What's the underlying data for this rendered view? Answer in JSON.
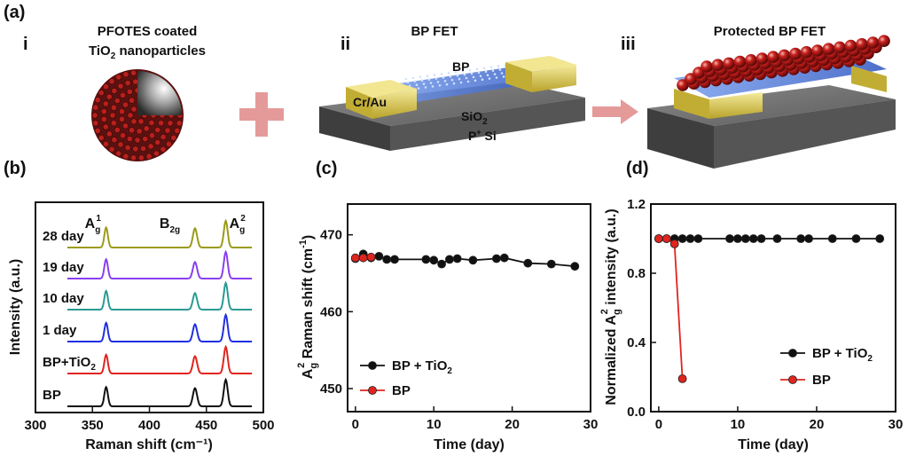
{
  "top": {
    "panel_label": "(a)",
    "i": {
      "roman": "i",
      "title_line1": "PFOTES coated",
      "title_line2_pre": "TiO",
      "title_line2_sub": "2",
      "title_line2_post": " nanoparticles"
    },
    "ii": {
      "roman": "ii",
      "title": "BP FET",
      "bp_label": "BP",
      "electrode_label": "Cr/Au",
      "sio2_pre": "SiO",
      "sio2_sub": "2",
      "psi_pre": "P",
      "psi_sup": "+",
      "psi_post": " Si"
    },
    "iii": {
      "roman": "iii",
      "title": "Protected BP FET"
    }
  },
  "colors": {
    "bp_plus_tio2": "#111111",
    "bp": "#e0241f",
    "raman_28": "#9b9b1a",
    "raman_19": "#8a3ff0",
    "raman_10": "#2a9a93",
    "raman_1": "#2030e0",
    "raman_bptio2": "#e0241f",
    "raman_bp": "#111111",
    "plus_sign": "#e59a9a",
    "arrow": "#e59a9a",
    "gold": "#d8c84a",
    "bp_blue": "#4a78d8"
  },
  "chart_data": [
    {
      "type": "line",
      "panel": "(b)",
      "xlabel": "Raman shift (cm⁻¹)",
      "ylabel": "Intensity (a.u.)",
      "xlim": [
        300,
        500
      ],
      "xticks": [
        "300",
        "350",
        "400",
        "450",
        "500"
      ],
      "peaks": [
        {
          "label_main": "A",
          "label_sub": "g",
          "label_sup": "1",
          "position": 362
        },
        {
          "label_main": "B",
          "label_sub": "2g",
          "label_sup": "",
          "position": 440
        },
        {
          "label_main": "A",
          "label_sub": "g",
          "label_sup": "2",
          "position": 467
        }
      ],
      "series": [
        {
          "name": "28 day",
          "peak_heights": [
            0.75,
            0.72,
            1.0
          ]
        },
        {
          "name": "19 day",
          "peak_heights": [
            0.72,
            0.62,
            1.0
          ]
        },
        {
          "name": "10 day",
          "peak_heights": [
            0.7,
            0.62,
            1.0
          ]
        },
        {
          "name": "1 day",
          "peak_heights": [
            0.7,
            0.65,
            1.0
          ]
        },
        {
          "name_pre": "BP+TiO",
          "name_sub": "2",
          "peak_heights": [
            0.7,
            0.65,
            1.0
          ]
        },
        {
          "name": "BP",
          "peak_heights": [
            0.72,
            0.68,
            1.0
          ]
        }
      ]
    },
    {
      "type": "line",
      "panel": "(c)",
      "xlabel": "Time (day)",
      "ylabel_pre": "A",
      "ylabel_sub": "g",
      "ylabel_sup": "2",
      "ylabel_post": " Raman shift (cm",
      "ylabel_sup2": "-1",
      "ylabel_end": ")",
      "xlim": [
        -1,
        30
      ],
      "ylim": [
        447,
        474
      ],
      "xticks": [
        "0",
        "10",
        "20",
        "30"
      ],
      "yticks": [
        "450",
        "460",
        "470"
      ],
      "series": [
        {
          "name_pre": "BP + TiO",
          "name_sub": "2",
          "x": [
            0,
            1,
            2,
            3,
            4,
            5,
            9,
            10,
            11,
            12,
            13,
            15,
            18,
            19,
            22,
            25,
            28
          ],
          "y": [
            466.9,
            467.5,
            467.0,
            467.2,
            466.8,
            466.8,
            466.8,
            466.7,
            466.2,
            466.8,
            466.9,
            466.7,
            466.9,
            467.0,
            466.3,
            466.2,
            465.9
          ]
        },
        {
          "name": "BP",
          "x": [
            0,
            1,
            2
          ],
          "y": [
            467.0,
            467.0,
            467.1
          ]
        }
      ]
    },
    {
      "type": "line",
      "panel": "(d)",
      "xlabel": "Time (day)",
      "ylabel_pre": "Normalized A",
      "ylabel_sub": "g",
      "ylabel_sup": "2",
      "ylabel_post": " intensity (a.u.)",
      "xlim": [
        -1,
        30
      ],
      "ylim": [
        0.0,
        1.2
      ],
      "xticks": [
        "0",
        "10",
        "20",
        "30"
      ],
      "yticks": [
        "0.0",
        "0.4",
        "0.8",
        "1.2"
      ],
      "series": [
        {
          "name_pre": "BP + TiO",
          "name_sub": "2",
          "x": [
            0,
            1,
            2,
            3,
            4,
            5,
            9,
            10,
            11,
            12,
            13,
            15,
            18,
            19,
            22,
            25,
            28
          ],
          "y": [
            1.0,
            1.0,
            1.0,
            1.0,
            1.0,
            1.0,
            1.0,
            1.0,
            1.0,
            1.0,
            1.0,
            1.0,
            1.0,
            1.0,
            1.0,
            1.0,
            1.0
          ]
        },
        {
          "name": "BP",
          "x": [
            0,
            1,
            2,
            3
          ],
          "y": [
            1.0,
            1.0,
            0.97,
            0.19
          ]
        }
      ]
    }
  ]
}
